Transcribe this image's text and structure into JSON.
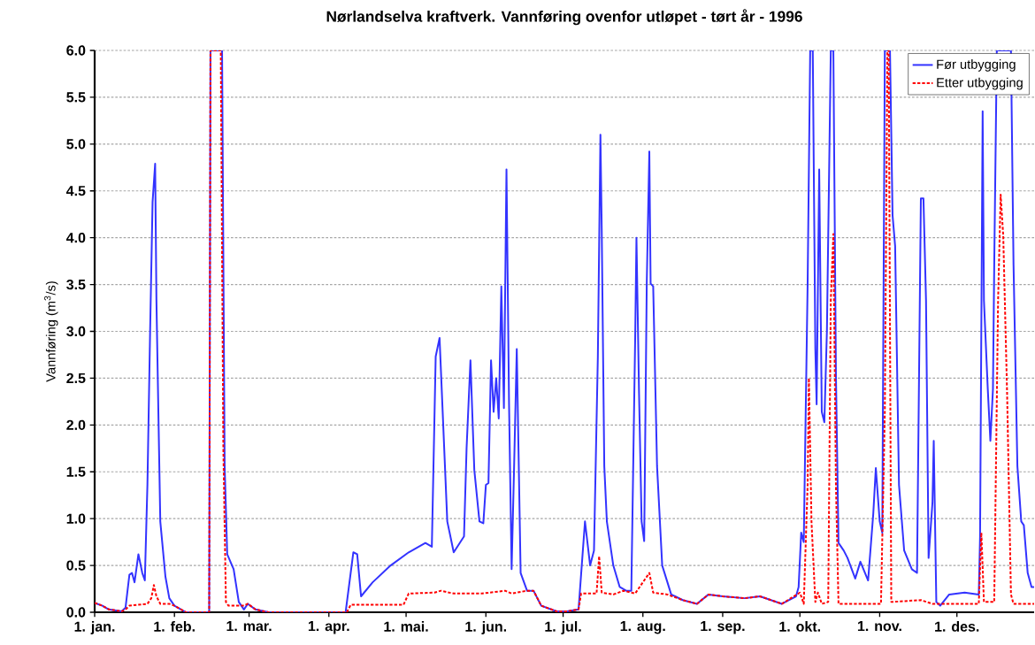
{
  "chart_data": {
    "type": "line",
    "title": "Nørlandselva kraftverk. Vannføring ovenfor utløpet - tørt år - 1996",
    "ylabel": "Vannføring (m$^{3}$/s)",
    "xlim": [
      "1996-01-01",
      "1996-12-31"
    ],
    "xticks": [
      {
        "value": "1996-01-01",
        "label": "1. jan."
      },
      {
        "value": "1996-02-01",
        "label": "1. feb."
      },
      {
        "value": "1996-03-01",
        "label": "1. mar."
      },
      {
        "value": "1996-04-01",
        "label": "1. apr."
      },
      {
        "value": "1996-05-01",
        "label": "1. mai."
      },
      {
        "value": "1996-06-01",
        "label": "1. jun."
      },
      {
        "value": "1996-07-01",
        "label": "1. jul."
      },
      {
        "value": "1996-08-01",
        "label": "1. aug."
      },
      {
        "value": "1996-09-01",
        "label": "1. sep."
      },
      {
        "value": "1996-10-01",
        "label": "1. okt."
      },
      {
        "value": "1996-11-01",
        "label": "1. nov."
      },
      {
        "value": "1996-12-01",
        "label": "1. des."
      }
    ],
    "ylim": [
      0,
      6
    ],
    "yticks": [
      {
        "value": 0,
        "label": "0.0"
      },
      {
        "value": 0.5,
        "label": "0.5"
      },
      {
        "value": 1,
        "label": "1.0"
      },
      {
        "value": 1.5,
        "label": "1.5"
      },
      {
        "value": 2,
        "label": "2.0"
      },
      {
        "value": 2.5,
        "label": "2.5"
      },
      {
        "value": 3,
        "label": "3.0"
      },
      {
        "value": 3.5,
        "label": "3.5"
      },
      {
        "value": 4,
        "label": "4.0"
      },
      {
        "value": 4.5,
        "label": "4.5"
      },
      {
        "value": 5,
        "label": "5.0"
      },
      {
        "value": 5.5,
        "label": "5.5"
      },
      {
        "value": 6,
        "label": "6.0"
      }
    ],
    "grid": "y",
    "legend": "top right",
    "series": [
      {
        "name": "Før utbygging",
        "color": "#3333ff",
        "line_style": "solid",
        "x": [
          "1996-01-01",
          "1996-01-04",
          "1996-01-06T12:00",
          "1996-01-11T12:00",
          "1996-01-13",
          "1996-01-14T12:00",
          "1996-01-15T12:00",
          "1996-01-16T12:00",
          "1996-01-18",
          "1996-01-19T12:00",
          "1996-01-20T12:00",
          "1996-01-21T12:00",
          "1996-01-22T12:00",
          "1996-01-23T12:00",
          "1996-01-24T12:00",
          "1996-01-25",
          "1996-01-26T12:00",
          "1996-01-28T12:00",
          "1996-01-30",
          "1996-02-01",
          "1996-02-05T12:00",
          "1996-02-14T12:00",
          "1996-02-15",
          "1996-02-19T12:00",
          "1996-02-20T12:00",
          "1996-02-21T12:00",
          "1996-02-24",
          "1996-02-26",
          "1996-02-28",
          "1996-02-29T12:00",
          "1996-03-03T12:00",
          "1996-03-08T12:00",
          "1996-04-07T12:00",
          "1996-04-10T12:00",
          "1996-04-12",
          "1996-04-13T12:00",
          "1996-04-18",
          "1996-04-25",
          "1996-05-02",
          "1996-05-08T12:00",
          "1996-05-11",
          "1996-05-12T12:00",
          "1996-05-14",
          "1996-05-15T12:00",
          "1996-05-17",
          "1996-05-19T12:00",
          "1996-05-23T12:00",
          "1996-05-24T12:00",
          "1996-05-26",
          "1996-05-27T12:00",
          "1996-05-29T12:00",
          "1996-05-31",
          "1996-06-01",
          "1996-06-02",
          "1996-06-03",
          "1996-06-04",
          "1996-06-05",
          "1996-06-06",
          "1996-06-07",
          "1996-06-08",
          "1996-06-09",
          "1996-06-10",
          "1996-06-11",
          "1996-06-12",
          "1996-06-13",
          "1996-06-14T12:00",
          "1996-06-17",
          "1996-06-19T12:00",
          "1996-06-22T12:00",
          "1996-06-28T12:00",
          "1996-07-02T12:00",
          "1996-07-07",
          "1996-07-09T12:00",
          "1996-07-11T12:00",
          "1996-07-13",
          "1996-07-14T12:00",
          "1996-07-15T12:00",
          "1996-07-16",
          "1996-07-17",
          "1996-07-18",
          "1996-07-20T12:00",
          "1996-07-23",
          "1996-07-25T12:00",
          "1996-07-27T12:00",
          "1996-07-29",
          "1996-07-29T12:00",
          "1996-07-30T12:00",
          "1996-07-31T12:00",
          "1996-08-01T12:00",
          "1996-08-02T12:00",
          "1996-08-03T12:00",
          "1996-08-04",
          "1996-08-05",
          "1996-08-06T12:00",
          "1996-08-08T12:00",
          "1996-08-12",
          "1996-08-16T12:00",
          "1996-08-22",
          "1996-08-26T12:00",
          "1996-09-01",
          "1996-09-09T12:00",
          "1996-09-15T12:00",
          "1996-09-24",
          "1996-09-29T12:00",
          "1996-09-30T12:00",
          "1996-10-01T12:00",
          "1996-10-02T12:00",
          "1996-10-04",
          "1996-10-05",
          "1996-10-06",
          "1996-10-07",
          "1996-10-07T12:00",
          "1996-10-08T12:00",
          "1996-10-09T12:00",
          "1996-10-10T12:00",
          "1996-10-11T12:00",
          "1996-10-13",
          "1996-10-14",
          "1996-10-15",
          "1996-10-16",
          "1996-10-18",
          "1996-10-19T12:00",
          "1996-10-22T12:00",
          "1996-10-24T12:00",
          "1996-10-27T12:00",
          "1996-10-29T12:00",
          "1996-10-30T12:00",
          "1996-11-01",
          "1996-11-02",
          "1996-11-03",
          "1996-11-05",
          "1996-11-06",
          "1996-11-07",
          "1996-11-08T12:00",
          "1996-11-10T12:00",
          "1996-11-13T12:00",
          "1996-11-15T12:00",
          "1996-11-17",
          "1996-11-18",
          "1996-11-19",
          "1996-11-20",
          "1996-11-21T12:00",
          "1996-11-22",
          "1996-11-23",
          "1996-11-24T12:00",
          "1996-11-28",
          "1996-12-04",
          "1996-12-09T12:00",
          "1996-12-10",
          "1996-12-11",
          "1996-12-11T12:00",
          "1996-12-13",
          "1996-12-14",
          "1996-12-15",
          "1996-12-15T12:00",
          "1996-12-16T12:00",
          "1996-12-22",
          "1996-12-23",
          "1996-12-24T12:00",
          "1996-12-26",
          "1996-12-27",
          "1996-12-28T12:00",
          "1996-12-30",
          "1996-12-31"
        ],
        "values": [
          0.1,
          0.07,
          0.03,
          0.01,
          0.05,
          0.4,
          0.42,
          0.32,
          0.62,
          0.42,
          0.34,
          1.36,
          2.93,
          4.38,
          4.79,
          3.33,
          0.97,
          0.38,
          0.15,
          0.07,
          0,
          0,
          6,
          6,
          1.56,
          0.62,
          0.46,
          0.11,
          0.03,
          0.09,
          0.03,
          0,
          0,
          0.64,
          0.62,
          0.17,
          0.32,
          0.5,
          0.64,
          0.74,
          0.7,
          2.73,
          2.93,
          1.95,
          0.97,
          0.64,
          0.81,
          1.75,
          2.69,
          1.52,
          0.97,
          0.95,
          1.36,
          1.38,
          2.69,
          2.14,
          2.5,
          2.07,
          3.48,
          2.18,
          4.73,
          2.22,
          0.46,
          1.6,
          2.81,
          0.42,
          0.23,
          0.23,
          0.07,
          0.01,
          0.01,
          0.03,
          0.97,
          0.5,
          0.66,
          2.73,
          5.1,
          4.1,
          1.56,
          0.97,
          0.5,
          0.27,
          0.23,
          0.23,
          2.93,
          4.0,
          2.34,
          0.97,
          0.76,
          3.51,
          4.92,
          3.51,
          3.48,
          1.56,
          0.5,
          0.19,
          0.13,
          0.09,
          0.19,
          0.17,
          0.15,
          0.17,
          0.09,
          0.17,
          0.27,
          0.85,
          0.75,
          3.5,
          6,
          6,
          2.81,
          2.22,
          4.73,
          2.14,
          2.03,
          3.01,
          6,
          6,
          2.54,
          0.74,
          0.66,
          0.58,
          0.36,
          0.54,
          0.34,
          1.05,
          1.54,
          0.97,
          0.85,
          6,
          6,
          4.24,
          3.91,
          1.36,
          0.66,
          0.46,
          0.42,
          4.42,
          4.42,
          3.33,
          0.58,
          1.17,
          1.83,
          0.11,
          0.07,
          0.19,
          0.21,
          0.19,
          0.81,
          5.35,
          3.33,
          2.38,
          1.83,
          2.38,
          3.71,
          6,
          6,
          3.71,
          1.56,
          0.97,
          0.93,
          0.42,
          0.27,
          0.27
        ]
      },
      {
        "name": "Etter utbygging",
        "color": "#ff0000",
        "line_style": "dashed",
        "x": [
          "1996-01-01",
          "1996-01-04",
          "1996-01-06T12:00",
          "1996-01-11T12:00",
          "1996-01-13",
          "1996-01-14T12:00",
          "1996-01-21T12:00",
          "1996-01-23",
          "1996-01-24",
          "1996-01-25",
          "1996-01-26T12:00",
          "1996-01-30",
          "1996-02-01",
          "1996-02-05T12:00",
          "1996-02-14T12:00",
          "1996-02-15",
          "1996-02-19",
          "1996-02-20",
          "1996-02-21",
          "1996-02-22",
          "1996-02-28",
          "1996-02-29T12:00",
          "1996-03-03T12:00",
          "1996-03-08T12:00",
          "1996-04-08",
          "1996-04-09T12:00",
          "1996-04-30",
          "1996-05-02",
          "1996-05-12",
          "1996-05-14T12:00",
          "1996-05-19T12:00",
          "1996-05-30T12:00",
          "1996-06-08T12:00",
          "1996-06-11",
          "1996-06-17",
          "1996-06-19T12:00",
          "1996-06-22T12:00",
          "1996-06-28T12:00",
          "1996-07-02T12:00",
          "1996-07-07",
          "1996-07-08",
          "1996-07-14",
          "1996-07-15",
          "1996-07-16",
          "1996-07-20T12:00",
          "1996-07-24T12:00",
          "1996-07-29",
          "1996-08-03T12:00",
          "1996-08-05",
          "1996-08-10T12:00",
          "1996-08-16T12:00",
          "1996-08-22",
          "1996-08-26T12:00",
          "1996-09-01",
          "1996-09-09T12:00",
          "1996-09-15T12:00",
          "1996-09-24",
          "1996-10-01",
          "1996-10-02T12:00",
          "1996-10-04",
          "1996-10-04T12:00",
          "1996-10-05T12:00",
          "1996-10-07",
          "1996-10-08",
          "1996-10-09T12:00",
          "1996-10-12",
          "1996-10-13",
          "1996-10-14",
          "1996-10-15",
          "1996-10-16",
          "1996-11-01T12:00",
          "1996-11-03",
          "1996-11-04",
          "1996-11-04T12:00",
          "1996-11-05T12:00",
          "1996-11-17",
          "1996-11-21T12:00",
          "1996-12-09T12:00",
          "1996-12-10T12:00",
          "1996-12-11T12:00",
          "1996-12-15T12:00",
          "1996-12-17",
          "1996-12-18",
          "1996-12-19",
          "1996-12-20T12:00",
          "1996-12-22",
          "1996-12-23",
          "1996-12-31"
        ],
        "values": [
          0.1,
          0.07,
          0.03,
          0.01,
          0.03,
          0.07,
          0.09,
          0.15,
          0.29,
          0.17,
          0.09,
          0.09,
          0.07,
          0,
          0,
          6,
          6,
          1.75,
          0.11,
          0.07,
          0.07,
          0.09,
          0.03,
          0,
          0,
          0.08,
          0.08,
          0.2,
          0.21,
          0.23,
          0.2,
          0.2,
          0.23,
          0.2,
          0.23,
          0.23,
          0.07,
          0.01,
          0.01,
          0.03,
          0.2,
          0.2,
          0.6,
          0.21,
          0.19,
          0.23,
          0.2,
          0.42,
          0.21,
          0.19,
          0.13,
          0.09,
          0.19,
          0.17,
          0.15,
          0.17,
          0.09,
          0.21,
          0.09,
          1.36,
          2.5,
          0.97,
          0.11,
          0.21,
          0.09,
          0.11,
          3.33,
          4.04,
          1.36,
          0.09,
          0.09,
          2.14,
          6,
          6,
          0.11,
          0.13,
          0.09,
          0.09,
          0.85,
          0.11,
          0.11,
          3.33,
          4.46,
          4.02,
          2.34,
          0.19,
          0.09,
          0.09
        ]
      }
    ]
  }
}
